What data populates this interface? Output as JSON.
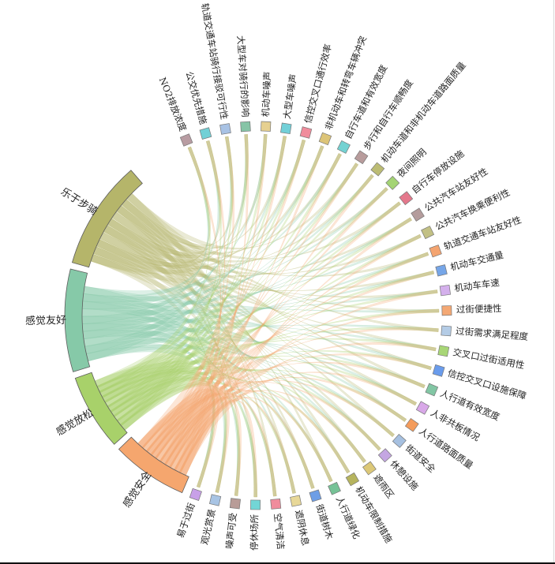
{
  "diagram": {
    "type": "chord",
    "outcomes": [
      {
        "name": "乐于步骑",
        "color": "#b5b56a"
      },
      {
        "name": "感觉友好",
        "color": "#86c9a8"
      },
      {
        "name": "感觉放松",
        "color": "#a8d16a"
      },
      {
        "name": "感觉安全",
        "color": "#f5a66e"
      }
    ],
    "factors": [
      {
        "name": "易于过街",
        "color": "#c8a0e8"
      },
      {
        "name": "观光赏景",
        "color": "#a8c4e4"
      },
      {
        "name": "噪声可受",
        "color": "#b89c98"
      },
      {
        "name": "停休场所",
        "color": "#72d6d6"
      },
      {
        "name": "空气清洁",
        "color": "#f08c9c"
      },
      {
        "name": "遮阴休息",
        "color": "#e8d898"
      },
      {
        "name": "街道树木",
        "color": "#6e9ee6"
      },
      {
        "name": "人行道绿化",
        "color": "#76c296"
      },
      {
        "name": "机动车限制措施",
        "color": "#b6b45e"
      },
      {
        "name": "遮雨区",
        "color": "#dcc878"
      },
      {
        "name": "休憩设施",
        "color": "#c4a6e2"
      },
      {
        "name": "街道安全",
        "color": "#a6c0e0"
      },
      {
        "name": "人行道路面质量",
        "color": "#f49c5c"
      },
      {
        "name": "人非共板情况",
        "color": "#d8a8e8"
      },
      {
        "name": "人行道有效宽度",
        "color": "#82c6a4"
      },
      {
        "name": "信控交叉口设施保障",
        "color": "#6a9cec"
      },
      {
        "name": "交叉口过街适用性",
        "color": "#a8d676"
      },
      {
        "name": "过街需求满足程度",
        "color": "#b4cce6"
      },
      {
        "name": "过街便捷性",
        "color": "#f4a874"
      },
      {
        "name": "机动车车速",
        "color": "#d4b0ec"
      },
      {
        "name": "机动车交通量",
        "color": "#76a6e8"
      },
      {
        "name": "轨道交通车站友好性",
        "color": "#f4a470"
      },
      {
        "name": "公共汽车换乘便利性",
        "color": "#c2c084"
      },
      {
        "name": "公共汽车站友好性",
        "color": "#b49c9c"
      },
      {
        "name": "自行车停放设施",
        "color": "#e4788c"
      },
      {
        "name": "夜间照明",
        "color": "#a4d474"
      },
      {
        "name": "机动车道和非机动车道路面质量",
        "color": "#bcbc74"
      },
      {
        "name": "步行和自行车顺畅度",
        "color": "#b89c9c"
      },
      {
        "name": "自行车道和有效宽度",
        "color": "#74d2d2"
      },
      {
        "name": "非机动车和转弯车辆冲突",
        "color": "#dcc478"
      },
      {
        "name": "信控交叉口通行效率",
        "color": "#f08c9c"
      },
      {
        "name": "大型车噪声",
        "color": "#72d0d8"
      },
      {
        "name": "机动车噪声",
        "color": "#e6d090"
      },
      {
        "name": "大型车对骑行的影响",
        "color": "#86c4a6"
      },
      {
        "name": "轨道交通车站骑行接驳可行性",
        "color": "#a8c2e4"
      },
      {
        "name": "公交优先措施",
        "color": "#72d0d6"
      },
      {
        "name": "NO2排放浓度",
        "color": "#b89ca2"
      }
    ]
  }
}
